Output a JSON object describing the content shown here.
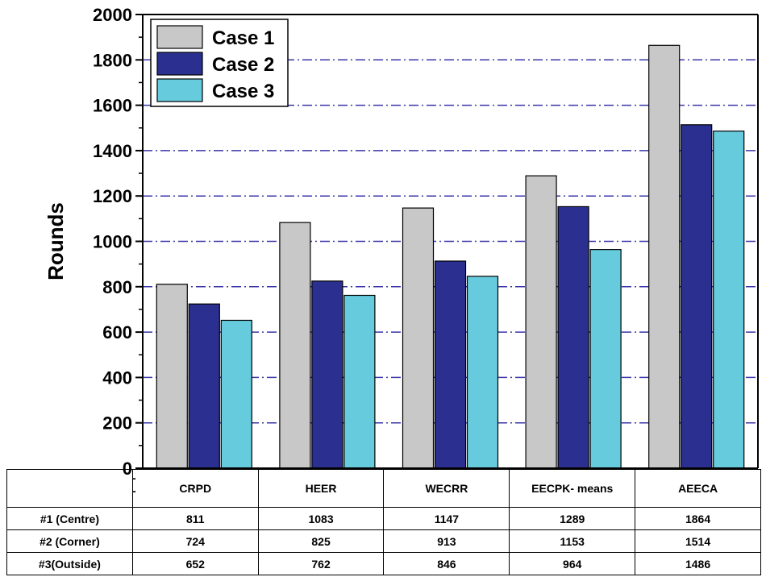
{
  "chart_data": {
    "type": "bar",
    "title": "",
    "xlabel": "",
    "ylabel": "Rounds",
    "ylim": [
      0,
      2000
    ],
    "yticks": [
      0,
      200,
      400,
      600,
      800,
      1000,
      1200,
      1400,
      1600,
      1800,
      2000
    ],
    "categories": [
      "CRPD",
      "HEER",
      "WECRR",
      "EECPK- means",
      "AEECA"
    ],
    "series": [
      {
        "name": "Case 1",
        "color": "#c8c8c8",
        "values": [
          811,
          1083,
          1147,
          1289,
          1864
        ]
      },
      {
        "name": "Case 2",
        "color": "#2b3090",
        "values": [
          724,
          825,
          913,
          1153,
          1514
        ]
      },
      {
        "name": "Case 3",
        "color": "#66cbdc",
        "values": [
          652,
          762,
          846,
          964,
          1486
        ]
      }
    ],
    "grid": {
      "horizontal": true,
      "style": "dash-dot",
      "color": "#3a35a8"
    },
    "legend_position": "top-left"
  },
  "table": {
    "corner_label": "--",
    "columns": [
      "CRPD",
      "HEER",
      "WECRR",
      "EECPK- means",
      "AEECA"
    ],
    "rows": [
      {
        "label": "#1 (Centre)",
        "values": [
          "811",
          "1083",
          "1147",
          "1289",
          "1864"
        ]
      },
      {
        "label": "#2 (Corner)",
        "values": [
          "724",
          "825",
          "913",
          "1153",
          "1514"
        ]
      },
      {
        "label": "#3(Outside)",
        "values": [
          "652",
          "762",
          "846",
          "964",
          "1486"
        ]
      }
    ]
  }
}
